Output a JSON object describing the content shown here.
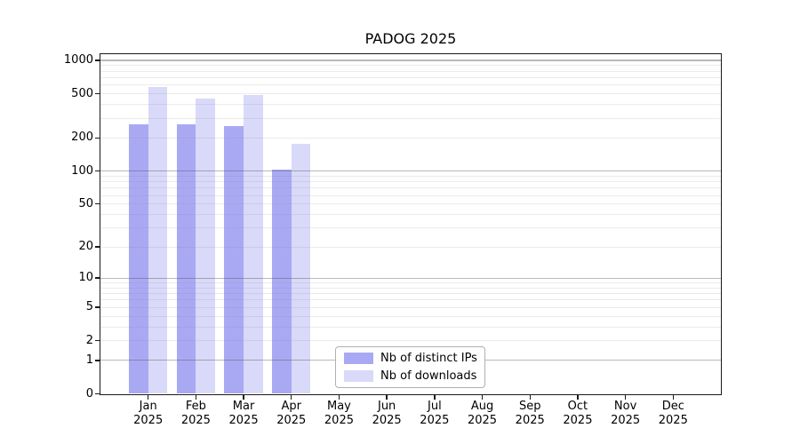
{
  "chart_data": {
    "type": "bar",
    "title": "PADOG 2025",
    "categories": [
      "Jan",
      "Feb",
      "Mar",
      "Apr",
      "May",
      "Jun",
      "Jul",
      "Aug",
      "Sep",
      "Oct",
      "Nov",
      "Dec"
    ],
    "category_year": "2025",
    "series": [
      {
        "name": "Nb of distinct IPs",
        "key": "distinct-ips",
        "color": "#a9a9f3",
        "values": [
          265,
          265,
          255,
          103,
          0,
          0,
          0,
          0,
          0,
          0,
          0,
          0
        ]
      },
      {
        "name": "Nb of downloads",
        "key": "downloads",
        "color": "#d9d9f9",
        "values": [
          575,
          455,
          485,
          175,
          0,
          0,
          0,
          0,
          0,
          0,
          0,
          0
        ]
      }
    ],
    "y_axis": {
      "scale": "quasi-log: position ~ log10(1+y)",
      "tick_values": [
        0,
        1,
        2,
        5,
        10,
        20,
        50,
        100,
        200,
        500,
        1000
      ],
      "tick_labels": [
        "0",
        "1",
        "2",
        "5",
        "10",
        "20",
        "50",
        "100",
        "200",
        "500",
        "1000"
      ],
      "range_top_value": 1150
    },
    "grid": {
      "major_lines": [
        1,
        10,
        100,
        1000
      ],
      "minor_lines": [
        2,
        3,
        4,
        5,
        6,
        7,
        8,
        9,
        20,
        30,
        40,
        50,
        60,
        70,
        80,
        90,
        200,
        300,
        400,
        500,
        600,
        700,
        800,
        900
      ]
    },
    "legend": {
      "position": "bottom-center",
      "entries": [
        "Nb of distinct IPs",
        "Nb of downloads"
      ]
    }
  },
  "colors": {
    "background": "#ffffff",
    "axis": "#1a1a1a",
    "text": "#000000",
    "bar_distinct_ips": "#a9a9f3",
    "bar_downloads": "#d9d9f9",
    "legend_border": "#b0b0b0"
  }
}
